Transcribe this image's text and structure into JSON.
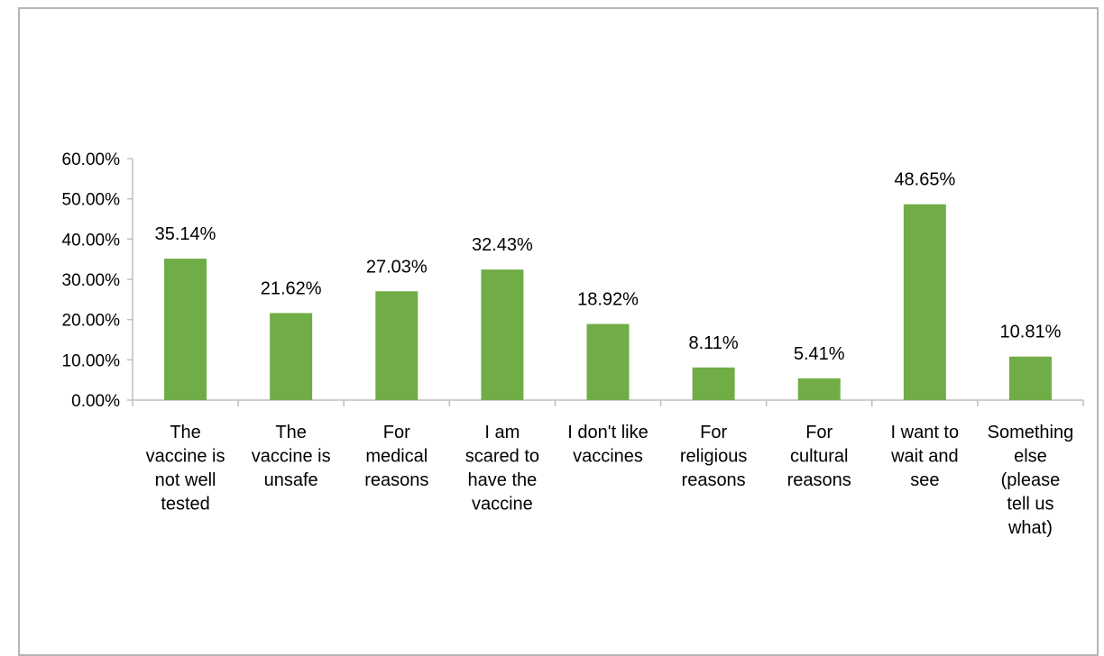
{
  "chart_data": {
    "type": "bar",
    "title": "",
    "xlabel": "",
    "ylabel": "",
    "ylim": [
      0,
      60
    ],
    "y_ticks": [
      "0.00%",
      "10.00%",
      "20.00%",
      "30.00%",
      "40.00%",
      "50.00%",
      "60.00%"
    ],
    "grid": false,
    "bar_color": "#70ad47",
    "categories": [
      [
        "The",
        "vaccine is",
        "not well",
        "tested"
      ],
      [
        "The",
        "vaccine is",
        "unsafe"
      ],
      [
        "For",
        "medical",
        "reasons"
      ],
      [
        "I am",
        "scared to",
        "have the",
        "vaccine"
      ],
      [
        "I don't like",
        "vaccines"
      ],
      [
        "For",
        "religious",
        "reasons"
      ],
      [
        "For",
        "cultural",
        "reasons"
      ],
      [
        "I want to",
        "wait and",
        "see"
      ],
      [
        "Something",
        "else",
        "(please",
        "tell us",
        "what)"
      ]
    ],
    "values": [
      35.14,
      21.62,
      27.03,
      32.43,
      18.92,
      8.11,
      5.41,
      48.65,
      10.81
    ],
    "value_labels": [
      "35.14%",
      "21.62%",
      "27.03%",
      "32.43%",
      "18.92%",
      "8.11%",
      "5.41%",
      "48.65%",
      "10.81%"
    ]
  }
}
